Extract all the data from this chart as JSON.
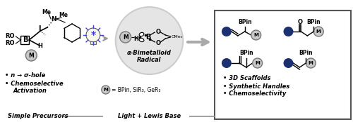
{
  "bg_color": "#ffffff",
  "box_color": "#555555",
  "arrow_color": "#999999",
  "circle_bg": "#e0e0e0",
  "circle_outline": "#cccccc",
  "blue_dot_color": "#1a3070",
  "metal_circle_color": "#c8c8c8",
  "metal_circle_outline": "#777777",
  "bottom_left_label": "Simple Precursors",
  "bottom_mid_label": "Light + Lewis Base",
  "left_bullets": [
    "n → σ-hole",
    "Chemoselective",
    "Activation"
  ],
  "right_bullets": [
    "3D Scaffolds",
    "Synthetic Handles",
    "Chemoselectivity"
  ],
  "radical_label_1": "α-Bimetalloid",
  "radical_label_2": "Radical",
  "m_definition": "= BPin, SiR₃, GeR₃",
  "figsize": [
    5.0,
    1.74
  ],
  "dpi": 100
}
